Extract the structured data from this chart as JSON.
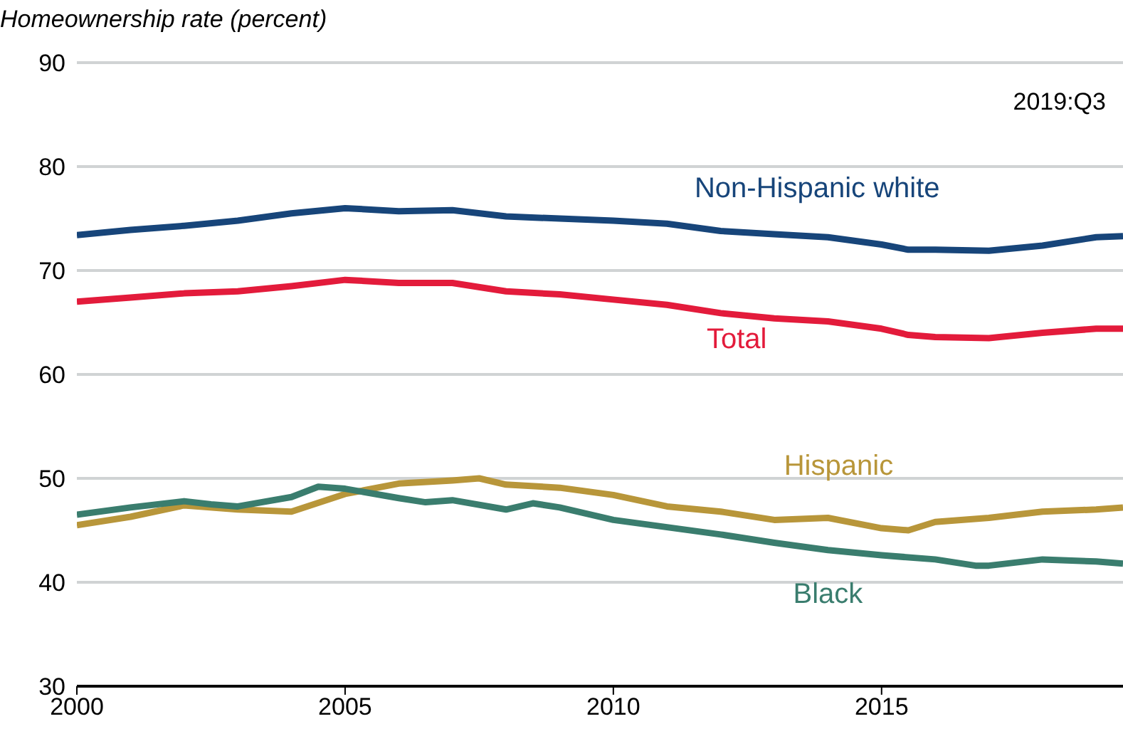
{
  "chart_data": {
    "type": "line",
    "ylabel": "Homeownership rate (percent)",
    "annotations": [
      "2019:Q3"
    ],
    "xlim": [
      2000,
      2019.5
    ],
    "xticks": [
      2000,
      2005,
      2010,
      2015
    ],
    "ylim": [
      30,
      90
    ],
    "yticks": [
      30,
      40,
      50,
      60,
      70,
      80,
      90
    ],
    "grid": "y",
    "legend": false,
    "marker": "none",
    "line_style": "solid",
    "series": [
      {
        "name": "Non-Hispanic white",
        "color": "#17457a",
        "x": [
          2000,
          2001,
          2002,
          2003,
          2004,
          2005,
          2006,
          2007,
          2008,
          2009,
          2010,
          2011,
          2012,
          2013,
          2014,
          2015,
          2015.5,
          2016,
          2017,
          2018,
          2019,
          2019.5
        ],
        "values": [
          73.4,
          73.9,
          74.3,
          74.8,
          75.5,
          76.0,
          75.7,
          75.8,
          75.2,
          75.0,
          74.8,
          74.5,
          73.8,
          73.5,
          73.2,
          72.5,
          72.0,
          72.0,
          71.9,
          72.4,
          73.2,
          73.3
        ]
      },
      {
        "name": "Total",
        "color": "#e31b3b",
        "x": [
          2000,
          2001,
          2002,
          2003,
          2004,
          2005,
          2006,
          2007,
          2008,
          2009,
          2010,
          2011,
          2012,
          2013,
          2014,
          2015,
          2015.5,
          2016,
          2017,
          2018,
          2019,
          2019.5
        ],
        "values": [
          67.0,
          67.4,
          67.8,
          68.0,
          68.5,
          69.1,
          68.8,
          68.8,
          68.0,
          67.7,
          67.2,
          66.7,
          65.9,
          65.4,
          65.1,
          64.4,
          63.8,
          63.6,
          63.5,
          64.0,
          64.4,
          64.4
        ]
      },
      {
        "name": "Hispanic",
        "color": "#b8963a",
        "x": [
          2000,
          2001,
          2002,
          2003,
          2004,
          2005,
          2006,
          2007,
          2007.5,
          2008,
          2009,
          2010,
          2011,
          2012,
          2013,
          2014,
          2015,
          2015.5,
          2016,
          2017,
          2018,
          2019,
          2019.5
        ],
        "values": [
          45.5,
          46.3,
          47.4,
          47.0,
          46.8,
          48.5,
          49.5,
          49.8,
          50.0,
          49.4,
          49.1,
          48.4,
          47.3,
          46.8,
          46.0,
          46.2,
          45.2,
          45.0,
          45.8,
          46.2,
          46.8,
          47.0,
          47.2
        ]
      },
      {
        "name": "Black",
        "color": "#3a7d6e",
        "x": [
          2000,
          2001,
          2002,
          2002.5,
          2003,
          2004,
          2004.5,
          2005,
          2006,
          2006.5,
          2007,
          2008,
          2008.5,
          2009,
          2010,
          2011,
          2012,
          2013,
          2014,
          2015,
          2016,
          2016.75,
          2017,
          2018,
          2019,
          2019.5
        ],
        "values": [
          46.5,
          47.2,
          47.8,
          47.5,
          47.3,
          48.2,
          49.2,
          49.0,
          48.1,
          47.7,
          47.9,
          47.0,
          47.6,
          47.2,
          46.0,
          45.3,
          44.6,
          43.8,
          43.1,
          42.6,
          42.2,
          41.6,
          41.6,
          42.2,
          42.0,
          41.8
        ]
      }
    ]
  }
}
